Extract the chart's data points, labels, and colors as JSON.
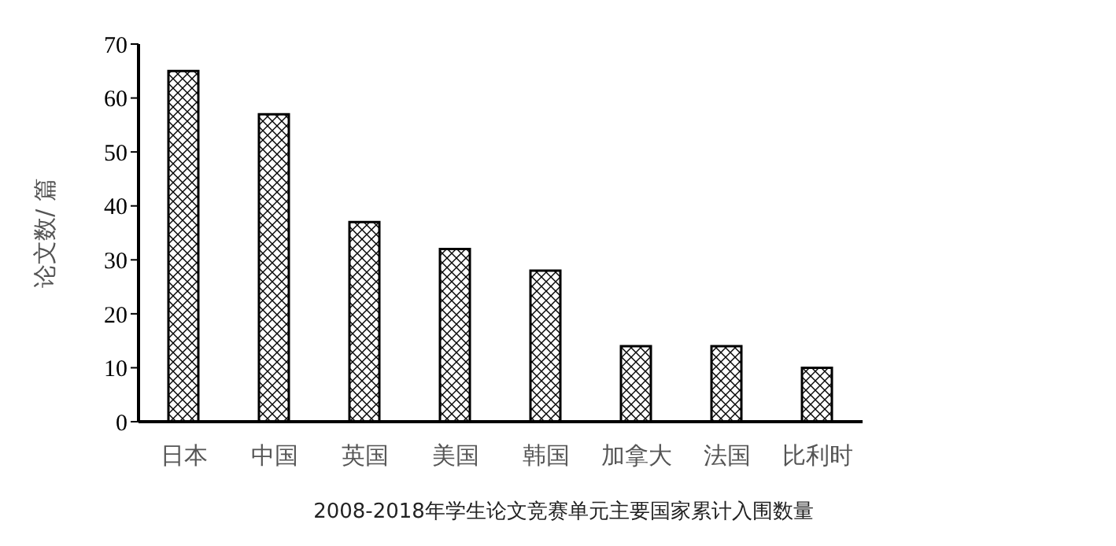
{
  "chart_data": {
    "type": "bar",
    "title": "2008-2018年学生论文竞赛单元主要国家累计入围数量",
    "ylabel": "论文数/ 篇",
    "categories": [
      "日本",
      "中国",
      "英国",
      "美国",
      "韩国",
      "加拿大",
      "法国",
      "比利时"
    ],
    "values": [
      65,
      57,
      37,
      32,
      28,
      14,
      14,
      10
    ],
    "color": "#000000",
    "ylim": [
      0,
      70
    ],
    "yticks": [
      0,
      10,
      20,
      30,
      40,
      50,
      60,
      70
    ],
    "grid": false,
    "legend": false
  }
}
